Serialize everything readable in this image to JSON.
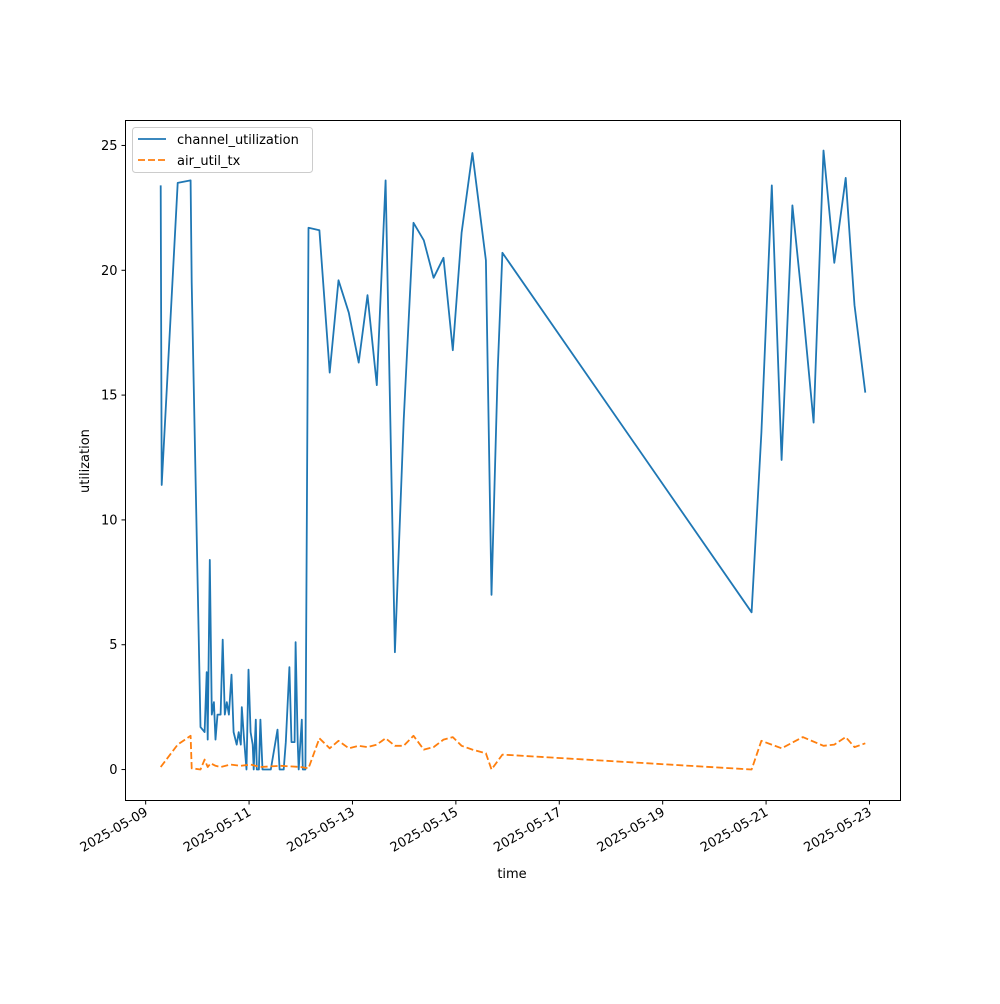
{
  "chart_data": {
    "type": "line",
    "title": "",
    "xlabel": "time",
    "ylabel": "utilization",
    "x_unit": "days since 2025-05-09 00:00",
    "xlim": [
      -0.39,
      14.6
    ],
    "ylim": [
      -1.24,
      26.0
    ],
    "grid": false,
    "legend_position": "top-left",
    "x_ticks": [
      {
        "value": 0,
        "label": "2025-05-09"
      },
      {
        "value": 2,
        "label": "2025-05-11"
      },
      {
        "value": 4,
        "label": "2025-05-13"
      },
      {
        "value": 6,
        "label": "2025-05-15"
      },
      {
        "value": 8,
        "label": "2025-05-17"
      },
      {
        "value": 10,
        "label": "2025-05-19"
      },
      {
        "value": 12,
        "label": "2025-05-21"
      },
      {
        "value": 14,
        "label": "2025-05-23"
      }
    ],
    "y_ticks": [
      {
        "value": 0,
        "label": "0"
      },
      {
        "value": 5,
        "label": "5"
      },
      {
        "value": 10,
        "label": "10"
      },
      {
        "value": 15,
        "label": "15"
      },
      {
        "value": 20,
        "label": "20"
      },
      {
        "value": 25,
        "label": "25"
      }
    ],
    "series": [
      {
        "name": "channel_utilization",
        "color": "#1f77b4",
        "style": "solid",
        "points": [
          [
            0.29,
            23.4
          ],
          [
            0.31,
            11.4
          ],
          [
            0.62,
            23.5
          ],
          [
            0.87,
            23.6
          ],
          [
            0.89,
            19.5
          ],
          [
            1.06,
            1.7
          ],
          [
            1.14,
            1.5
          ],
          [
            1.18,
            3.9
          ],
          [
            1.2,
            1.2
          ],
          [
            1.24,
            8.4
          ],
          [
            1.28,
            2.2
          ],
          [
            1.32,
            2.7
          ],
          [
            1.35,
            1.2
          ],
          [
            1.39,
            2.2
          ],
          [
            1.45,
            2.2
          ],
          [
            1.49,
            5.2
          ],
          [
            1.53,
            2.2
          ],
          [
            1.57,
            2.7
          ],
          [
            1.61,
            2.2
          ],
          [
            1.66,
            3.8
          ],
          [
            1.7,
            1.5
          ],
          [
            1.76,
            1.0
          ],
          [
            1.8,
            1.5
          ],
          [
            1.84,
            1.0
          ],
          [
            1.86,
            2.5
          ],
          [
            1.9,
            1.3
          ],
          [
            1.95,
            0
          ],
          [
            1.99,
            4.0
          ],
          [
            2.03,
            1.5
          ],
          [
            2.07,
            1.0
          ],
          [
            2.09,
            0
          ],
          [
            2.13,
            2.0
          ],
          [
            2.15,
            0
          ],
          [
            2.19,
            0
          ],
          [
            2.22,
            2.0
          ],
          [
            2.26,
            0
          ],
          [
            2.42,
            0
          ],
          [
            2.55,
            1.6
          ],
          [
            2.59,
            0
          ],
          [
            2.67,
            0
          ],
          [
            2.71,
            1.1
          ],
          [
            2.78,
            4.1
          ],
          [
            2.82,
            1.1
          ],
          [
            2.88,
            1.1
          ],
          [
            2.9,
            5.1
          ],
          [
            2.94,
            1.1
          ],
          [
            2.96,
            0
          ],
          [
            3.02,
            2.0
          ],
          [
            3.04,
            0
          ],
          [
            3.09,
            0
          ],
          [
            3.15,
            21.7
          ],
          [
            3.36,
            21.6
          ],
          [
            3.56,
            15.9
          ],
          [
            3.73,
            19.6
          ],
          [
            3.93,
            18.3
          ],
          [
            4.12,
            16.3
          ],
          [
            4.29,
            19.0
          ],
          [
            4.47,
            15.4
          ],
          [
            4.64,
            23.6
          ],
          [
            4.82,
            4.7
          ],
          [
            4.99,
            14.0
          ],
          [
            5.18,
            21.9
          ],
          [
            5.38,
            21.2
          ],
          [
            5.57,
            19.7
          ],
          [
            5.76,
            20.5
          ],
          [
            5.94,
            16.8
          ],
          [
            6.11,
            21.5
          ],
          [
            6.32,
            24.7
          ],
          [
            6.58,
            20.4
          ],
          [
            6.69,
            7.0
          ],
          [
            6.81,
            16.0
          ],
          [
            6.9,
            20.7
          ],
          [
            11.72,
            6.3
          ],
          [
            11.91,
            13.5
          ],
          [
            12.11,
            23.4
          ],
          [
            12.3,
            12.4
          ],
          [
            12.51,
            22.6
          ],
          [
            12.71,
            18.5
          ],
          [
            12.92,
            13.9
          ],
          [
            13.11,
            24.8
          ],
          [
            13.32,
            20.3
          ],
          [
            13.54,
            23.7
          ],
          [
            13.71,
            18.6
          ],
          [
            13.92,
            15.1
          ]
        ]
      },
      {
        "name": "air_util_tx",
        "color": "#ff7f0e",
        "style": "dashed",
        "points": [
          [
            0.29,
            0.1
          ],
          [
            0.62,
            1.0
          ],
          [
            0.87,
            1.35
          ],
          [
            0.89,
            0.05
          ],
          [
            1.06,
            0
          ],
          [
            1.14,
            0.4
          ],
          [
            1.2,
            0.1
          ],
          [
            1.26,
            0.25
          ],
          [
            1.35,
            0.15
          ],
          [
            1.45,
            0.1
          ],
          [
            1.64,
            0.2
          ],
          [
            1.84,
            0.15
          ],
          [
            2.03,
            0.2
          ],
          [
            2.22,
            0.1
          ],
          [
            2.61,
            0.15
          ],
          [
            3.0,
            0.1
          ],
          [
            3.15,
            0.05
          ],
          [
            3.36,
            1.25
          ],
          [
            3.56,
            0.85
          ],
          [
            3.73,
            1.15
          ],
          [
            3.93,
            0.85
          ],
          [
            4.12,
            0.95
          ],
          [
            4.29,
            0.9
          ],
          [
            4.47,
            1.0
          ],
          [
            4.64,
            1.25
          ],
          [
            4.82,
            0.95
          ],
          [
            4.99,
            0.95
          ],
          [
            5.18,
            1.35
          ],
          [
            5.38,
            0.8
          ],
          [
            5.57,
            0.9
          ],
          [
            5.76,
            1.2
          ],
          [
            5.94,
            1.3
          ],
          [
            6.11,
            0.95
          ],
          [
            6.32,
            0.8
          ],
          [
            6.58,
            0.65
          ],
          [
            6.69,
            0
          ],
          [
            6.9,
            0.6
          ],
          [
            11.72,
            0
          ],
          [
            11.91,
            1.15
          ],
          [
            12.3,
            0.85
          ],
          [
            12.71,
            1.3
          ],
          [
            13.11,
            0.95
          ],
          [
            13.32,
            1.0
          ],
          [
            13.54,
            1.3
          ],
          [
            13.71,
            0.9
          ],
          [
            13.92,
            1.05
          ]
        ]
      }
    ]
  }
}
